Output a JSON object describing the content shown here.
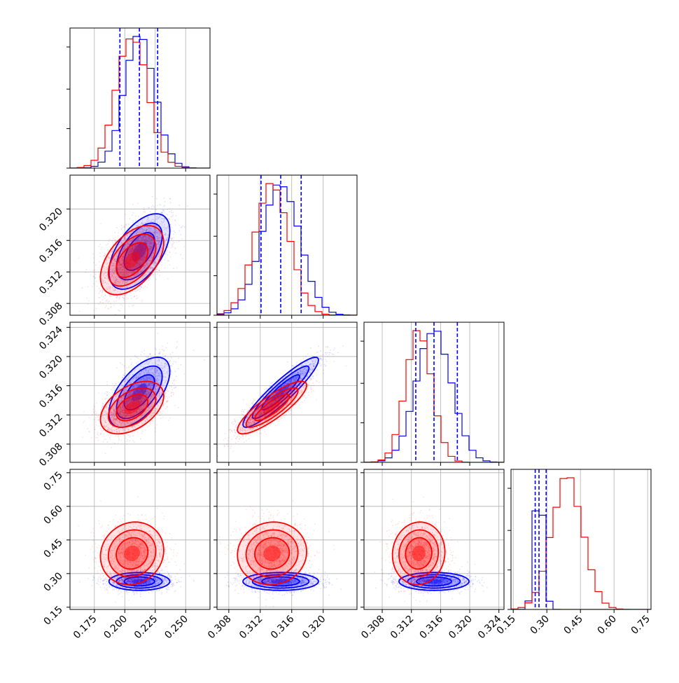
{
  "chart_data": {
    "type": "corner",
    "title": "",
    "parameters": [
      {
        "range": [
          0.155,
          0.27
        ],
        "ticks": [
          "0.175",
          "0.200",
          "0.225",
          "0.250"
        ],
        "tick_values": [
          0.175,
          0.2,
          0.225,
          0.25
        ]
      },
      {
        "range": [
          0.3065,
          0.3243
        ],
        "ticks": [
          "0.308",
          "0.312",
          "0.316",
          "0.320"
        ],
        "tick_values": [
          0.308,
          0.312,
          0.316,
          0.32
        ]
      },
      {
        "range": [
          0.3055,
          0.3247
        ],
        "ticks": [
          "0.308",
          "0.312",
          "0.316",
          "0.320",
          "0.324"
        ],
        "tick_values": [
          0.308,
          0.312,
          0.316,
          0.32,
          0.324
        ]
      },
      {
        "range": [
          0.14,
          0.765
        ],
        "ticks": [
          "0.15",
          "0.30",
          "0.45",
          "0.60",
          "0.75"
        ],
        "tick_values": [
          0.15,
          0.3,
          0.45,
          0.6,
          0.75
        ]
      }
    ],
    "series": [
      {
        "name": "",
        "color": "#0000ff",
        "means": [
          0.212,
          0.3146,
          0.3151,
          0.265
        ],
        "sigmas": [
          0.0125,
          0.0024,
          0.0024,
          0.02
        ],
        "correlations": {
          "1-0": 0.55,
          "2-0": 0.6,
          "2-1": 0.92,
          "3-0": 0.0,
          "3-1": 0.0,
          "3-2": 0.0
        },
        "quantiles": [
          [
            0.196,
            0.212,
            0.227
          ],
          [
            0.3121,
            0.3146,
            0.3172
          ],
          [
            0.3126,
            0.3151,
            0.3183
          ],
          [
            0.248,
            0.265,
            0.297
          ]
        ]
      },
      {
        "name": "",
        "color": "#ff0000",
        "means": [
          0.206,
          0.3135,
          0.313,
          0.39
        ],
        "sigmas": [
          0.013,
          0.0022,
          0.0018,
          0.07
        ],
        "correlations": {
          "1-0": 0.5,
          "2-0": 0.45,
          "2-1": 0.85,
          "3-0": 0.1,
          "3-1": 0.05,
          "3-2": 0.05
        },
        "quantiles": null
      }
    ],
    "quantile_line_color": "#0000ff",
    "grid": true,
    "legend": "none"
  }
}
